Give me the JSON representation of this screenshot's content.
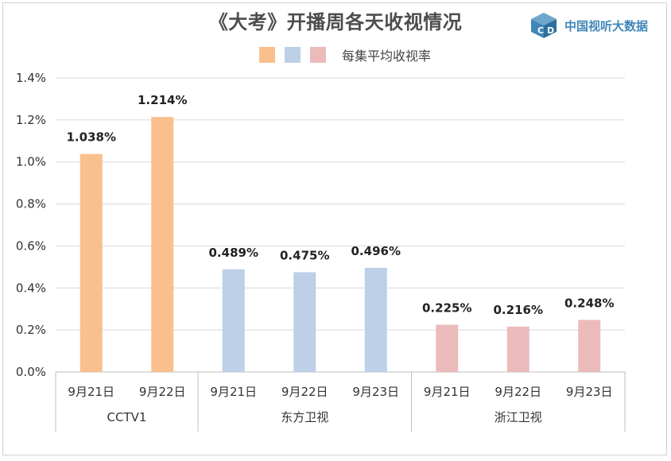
{
  "title": "《大考》开播周各天收视情况",
  "brand": {
    "name": "中国视听大数据",
    "logo_icon": "cube-cd-logo-icon",
    "color": "#3f87b8"
  },
  "legend": {
    "label": "每集平均收视率",
    "swatches": [
      "#f9c08e",
      "#bdd0e8",
      "#ebbbbc"
    ]
  },
  "chart_data": {
    "type": "bar",
    "ylabel": "",
    "ylim": [
      0,
      1.4
    ],
    "yticks": [
      "0.0%",
      "0.2%",
      "0.4%",
      "0.6%",
      "0.8%",
      "1.0%",
      "1.2%",
      "1.4%"
    ],
    "grid": true,
    "groups": [
      {
        "name": "CCTV1",
        "color": "#f9c08e",
        "categories": [
          "9月21日",
          "9月22日"
        ],
        "values": [
          1.038,
          1.214
        ],
        "labels": [
          "1.038%",
          "1.214%"
        ]
      },
      {
        "name": "东方卫视",
        "color": "#bdd0e8",
        "categories": [
          "9月21日",
          "9月22日",
          "9月23日"
        ],
        "values": [
          0.489,
          0.475,
          0.496
        ],
        "labels": [
          "0.489%",
          "0.475%",
          "0.496%"
        ]
      },
      {
        "name": "浙江卫视",
        "color": "#ebbbbc",
        "categories": [
          "9月21日",
          "9月22日",
          "9月23日"
        ],
        "values": [
          0.225,
          0.216,
          0.248
        ],
        "labels": [
          "0.225%",
          "0.216%",
          "0.248%"
        ]
      }
    ]
  }
}
